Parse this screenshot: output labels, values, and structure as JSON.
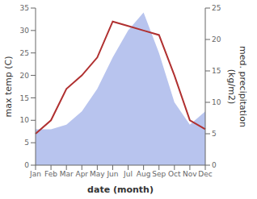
{
  "chart_data": {
    "type": "line",
    "xlabel": "date (month)",
    "ylabel": "max temp (C)",
    "y2label": "med. precipitation\n(kg/m2)",
    "categories": [
      "Jan",
      "Feb",
      "Mar",
      "Apr",
      "May",
      "Jun",
      "Jul",
      "Aug",
      "Sep",
      "Oct",
      "Nov",
      "Dec"
    ],
    "series": [
      {
        "type": "area",
        "color": "#b8c4ee",
        "values": [
          8,
          8,
          9,
          12,
          17,
          24,
          30,
          34,
          25,
          14,
          9,
          12
        ]
      },
      {
        "type": "line",
        "color": "#b03030",
        "values": [
          7,
          10,
          17,
          20,
          24,
          32,
          31,
          30,
          29,
          20,
          10,
          8
        ]
      }
    ],
    "ylim": [
      0,
      35
    ],
    "yticks": [
      0,
      5,
      10,
      15,
      20,
      25,
      30,
      35
    ],
    "y2lim": [
      0,
      25
    ],
    "y2ticks": [
      0,
      5,
      10,
      15,
      20,
      25
    ],
    "grid": false
  }
}
